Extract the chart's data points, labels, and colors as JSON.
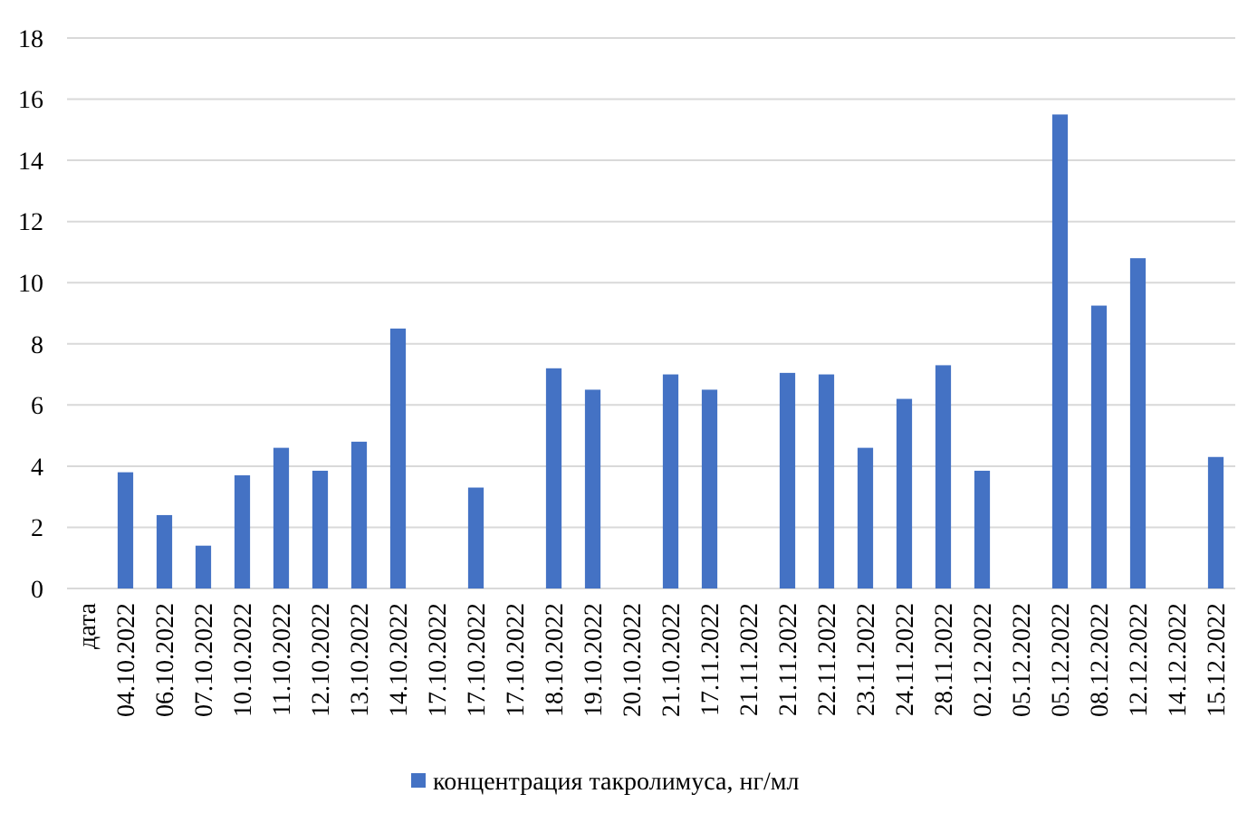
{
  "chart_data": {
    "type": "bar",
    "categories": [
      "дата",
      "04.10.2022",
      "06.10.2022",
      "07.10.2022",
      "10.10.2022",
      "11.10.2022",
      "12.10.2022",
      "13.10.2022",
      "14.10.2022",
      "17.10.2022",
      "17.10.2022",
      "17.10.2022",
      "18.10.2022",
      "19.10.2022",
      "20.10.2022",
      "21.10.2022",
      "17.11.2022",
      "21.11.2022",
      "21.11.2022",
      "22.11.2022",
      "23.11.2022",
      "24.11.2022",
      "28.11.2022",
      "02.12.2022",
      "05.12.2022",
      "05.12.2022",
      "08.12.2022",
      "12.12.2022",
      "14.12.2022",
      "15.12.2022"
    ],
    "series": [
      {
        "name": "концентрация такролимуса, нг/мл",
        "color": "#4472c4",
        "values": [
          null,
          3.8,
          2.4,
          1.4,
          3.7,
          4.6,
          3.85,
          4.8,
          8.5,
          null,
          3.3,
          null,
          7.2,
          6.5,
          null,
          7.0,
          6.5,
          null,
          7.05,
          7.0,
          4.6,
          6.2,
          7.3,
          3.85,
          null,
          15.5,
          9.25,
          10.8,
          null,
          4.3
        ]
      }
    ],
    "ylim": [
      0,
      18
    ],
    "yticks": [
      0,
      2,
      4,
      6,
      8,
      10,
      12,
      14,
      16,
      18
    ],
    "grid": "y",
    "legend": "bottom"
  }
}
